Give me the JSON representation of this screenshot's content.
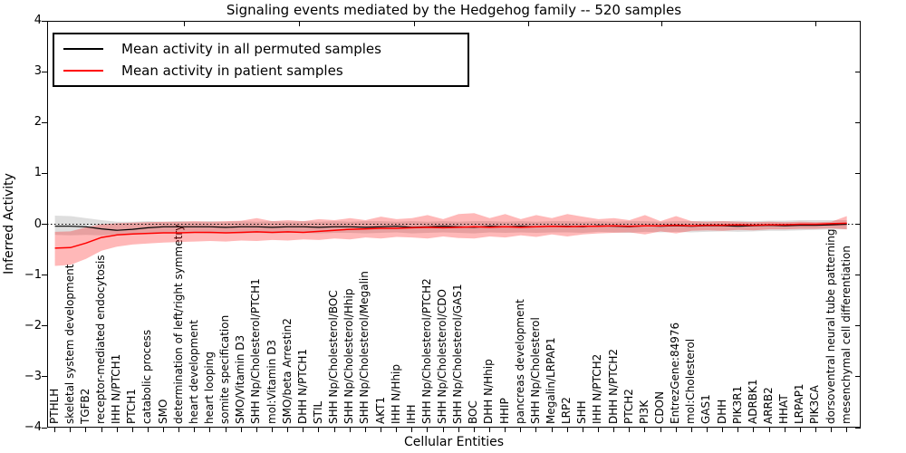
{
  "chart_data": {
    "type": "line",
    "title": "Signaling events mediated by the Hedgehog family -- 520 samples",
    "xlabel": "Cellular Entities",
    "ylabel": "Inferred Activity",
    "ylim": [
      -4,
      4
    ],
    "yticks": [
      4,
      3,
      2,
      1,
      0,
      -1,
      -2,
      -3,
      -4
    ],
    "grid": false,
    "zero_line": true,
    "legend_position": "upper left",
    "categories": [
      "PTHLH",
      "skeletal system development",
      "TGFB2",
      "receptor-mediated endocytosis",
      "IHH N/PTCH1",
      "PTCH1",
      "catabolic process",
      "SMO",
      "determination of left/right symmetry",
      "heart development",
      "heart looping",
      "somite specification",
      "SMO/Vitamin D3",
      "SHH Np/Cholesterol/PTCH1",
      "mol:Vitamin D3",
      "SMO/beta Arrestin2",
      "DHH N/PTCH1",
      "STIL",
      "SHH Np/Cholesterol/BOC",
      "SHH Np/Cholesterol/Hhip",
      "SHH Np/Cholesterol/Megalin",
      "AKT1",
      "IHH N/Hhip",
      "IHH",
      "SHH Np/Cholesterol/PTCH2",
      "SHH Np/Cholesterol/CDO",
      "SHH Np/Cholesterol/GAS1",
      "BOC",
      "DHH N/Hhip",
      "HHIP",
      "pancreas development",
      "SHH Np/Cholesterol",
      "Megalin/LRPAP1",
      "LRP2",
      "SHH",
      "IHH N/PTCH2",
      "DHH N/PTCH2",
      "PTCH2",
      "PI3K",
      "CDON",
      "EntrezGene:84976",
      "mol:Cholesterol",
      "GAS1",
      "DHH",
      "PIK3R1",
      "ADRBK1",
      "ARRB2",
      "HHAT",
      "LRPAP1",
      "PIK3CA",
      "dorsoventral neural tube patterning",
      "mesenchymal cell differentiation"
    ],
    "series": [
      {
        "name": "Mean activity in all permuted samples",
        "color": "#000000",
        "band_color": "#000000",
        "band_alpha": 0.13,
        "values": [
          -0.04,
          -0.04,
          -0.05,
          -0.09,
          -0.12,
          -0.1,
          -0.07,
          -0.05,
          -0.05,
          -0.05,
          -0.05,
          -0.06,
          -0.05,
          -0.05,
          -0.06,
          -0.05,
          -0.05,
          -0.06,
          -0.05,
          -0.05,
          -0.06,
          -0.05,
          -0.04,
          -0.06,
          -0.05,
          -0.04,
          -0.05,
          -0.06,
          -0.04,
          -0.05,
          -0.04,
          -0.05,
          -0.04,
          -0.04,
          -0.05,
          -0.03,
          -0.04,
          -0.05,
          -0.03,
          -0.04,
          -0.03,
          -0.04,
          -0.03,
          -0.03,
          -0.04,
          -0.03,
          -0.02,
          -0.03,
          -0.02,
          -0.02,
          -0.01,
          0.0
        ],
        "band_upper": [
          0.17,
          0.16,
          0.12,
          0.08,
          0.05,
          0.05,
          0.06,
          0.05,
          0.06,
          0.05,
          0.06,
          0.05,
          0.06,
          0.05,
          0.06,
          0.05,
          0.06,
          0.05,
          0.06,
          0.05,
          0.06,
          0.06,
          0.05,
          0.06,
          0.05,
          0.06,
          0.05,
          0.06,
          0.06,
          0.05,
          0.06,
          0.05,
          0.06,
          0.06,
          0.05,
          0.06,
          0.05,
          0.06,
          0.06,
          0.05,
          0.06,
          0.06,
          0.07,
          0.06,
          0.07,
          0.06,
          0.07,
          0.07,
          0.08,
          0.08,
          0.08,
          0.08
        ],
        "band_lower": [
          -0.21,
          -0.22,
          -0.21,
          -0.22,
          -0.2,
          -0.19,
          -0.18,
          -0.17,
          -0.18,
          -0.17,
          -0.18,
          -0.17,
          -0.18,
          -0.17,
          -0.18,
          -0.17,
          -0.17,
          -0.18,
          -0.17,
          -0.17,
          -0.18,
          -0.17,
          -0.16,
          -0.18,
          -0.17,
          -0.16,
          -0.17,
          -0.18,
          -0.16,
          -0.17,
          -0.16,
          -0.17,
          -0.16,
          -0.16,
          -0.17,
          -0.15,
          -0.16,
          -0.17,
          -0.15,
          -0.16,
          -0.15,
          -0.16,
          -0.15,
          -0.14,
          -0.15,
          -0.14,
          -0.13,
          -0.13,
          -0.12,
          -0.11,
          -0.1,
          -0.1
        ]
      },
      {
        "name": "Mean activity in patient samples",
        "color": "#ff0000",
        "band_color": "#ff0000",
        "band_alpha": 0.28,
        "values": [
          -0.47,
          -0.46,
          -0.37,
          -0.26,
          -0.21,
          -0.19,
          -0.18,
          -0.17,
          -0.17,
          -0.16,
          -0.16,
          -0.17,
          -0.16,
          -0.15,
          -0.16,
          -0.15,
          -0.16,
          -0.14,
          -0.12,
          -0.1,
          -0.09,
          -0.08,
          -0.08,
          -0.07,
          -0.06,
          -0.07,
          -0.06,
          -0.05,
          -0.06,
          -0.05,
          -0.06,
          -0.05,
          -0.04,
          -0.05,
          -0.04,
          -0.04,
          -0.03,
          -0.04,
          -0.03,
          -0.03,
          -0.02,
          -0.03,
          -0.02,
          -0.02,
          -0.01,
          -0.02,
          -0.01,
          -0.01,
          0.0,
          0.0,
          0.01,
          0.02
        ],
        "band_upper": [
          -0.15,
          -0.14,
          -0.06,
          0.0,
          0.02,
          0.03,
          0.04,
          0.05,
          0.05,
          0.06,
          0.05,
          0.06,
          0.07,
          0.12,
          0.06,
          0.08,
          0.06,
          0.1,
          0.08,
          0.12,
          0.08,
          0.15,
          0.1,
          0.12,
          0.18,
          0.1,
          0.2,
          0.22,
          0.12,
          0.2,
          0.1,
          0.18,
          0.12,
          0.2,
          0.15,
          0.1,
          0.12,
          0.08,
          0.18,
          0.06,
          0.16,
          0.06,
          0.05,
          0.06,
          0.05,
          0.04,
          0.05,
          0.04,
          0.05,
          0.04,
          0.05,
          0.16
        ],
        "band_lower": [
          -0.82,
          -0.8,
          -0.68,
          -0.52,
          -0.44,
          -0.4,
          -0.38,
          -0.36,
          -0.35,
          -0.34,
          -0.33,
          -0.34,
          -0.32,
          -0.33,
          -0.31,
          -0.32,
          -0.3,
          -0.31,
          -0.28,
          -0.3,
          -0.26,
          -0.28,
          -0.25,
          -0.26,
          -0.28,
          -0.24,
          -0.27,
          -0.28,
          -0.24,
          -0.26,
          -0.22,
          -0.25,
          -0.2,
          -0.24,
          -0.2,
          -0.18,
          -0.17,
          -0.16,
          -0.2,
          -0.14,
          -0.18,
          -0.13,
          -0.12,
          -0.13,
          -0.11,
          -0.12,
          -0.1,
          -0.1,
          -0.09,
          -0.09,
          -0.08,
          -0.1
        ]
      }
    ]
  },
  "legend": {
    "items": [
      {
        "label": "Mean activity in all permuted samples",
        "color": "#000000"
      },
      {
        "label": "Mean activity in patient samples",
        "color": "#ff0000"
      }
    ]
  }
}
